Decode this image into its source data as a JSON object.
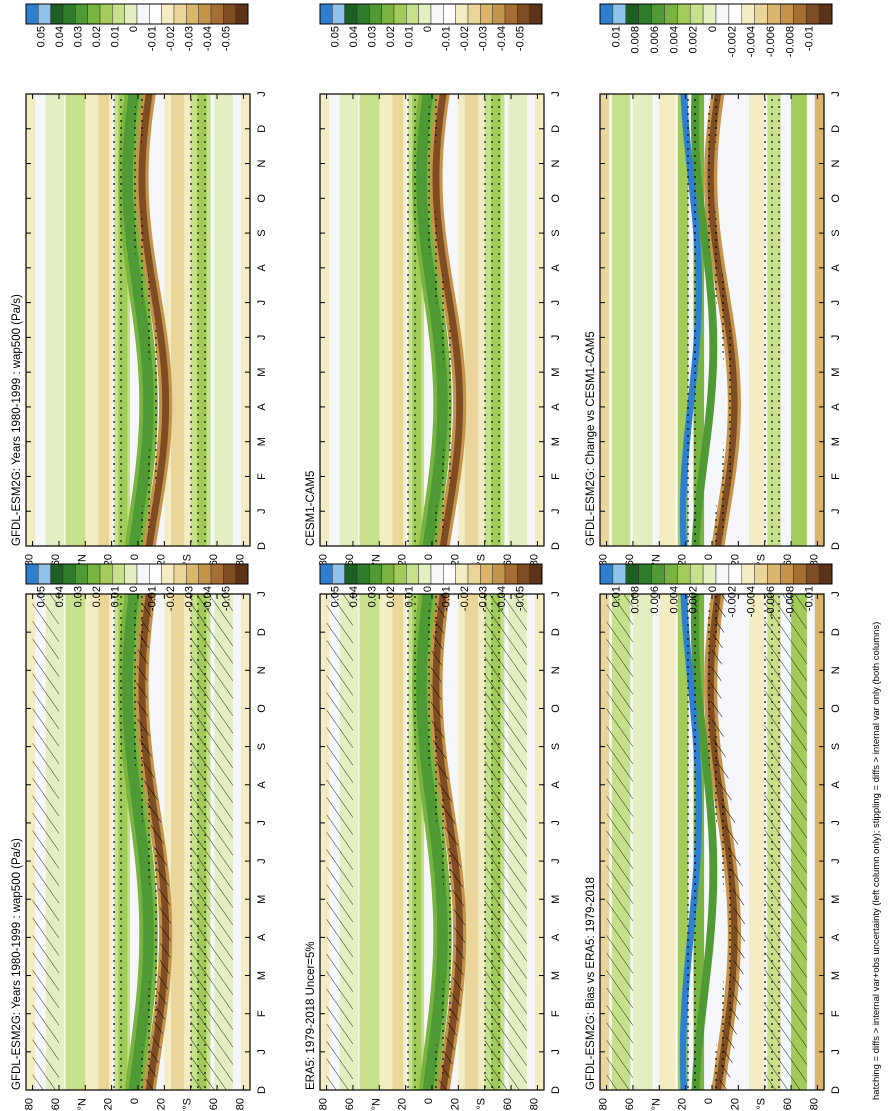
{
  "footnote": "hatching = diffs > internal var+obs uncertainty (left column only); stippling = diffs > internal var only (both columns)",
  "lat_ticks": [
    "80",
    "60",
    "°N",
    "20",
    "0",
    "20",
    "°S",
    "60",
    "80"
  ],
  "month_ticks": [
    "D",
    "J",
    "F",
    "M",
    "A",
    "M",
    "J",
    "J",
    "A",
    "S",
    "O",
    "N",
    "D",
    "J"
  ],
  "palette": {
    "blue": [
      "#2f7fd0",
      "#8fc3ec"
    ],
    "green": [
      "#1e5f22",
      "#2f7d2c",
      "#4f9a34",
      "#78b43f",
      "#a2cb5a",
      "#c7e08b",
      "#e3efc0"
    ],
    "white": [
      "#f6f7fb",
      "#ffffff"
    ],
    "tan": [
      "#f4ecc2",
      "#ead59a",
      "#d9b66a",
      "#c4944a",
      "#a66e34",
      "#7f4d23",
      "#5a3318"
    ]
  },
  "legends": {
    "row1_left": [
      "0.05",
      "0.04",
      "0.03",
      "0.02",
      "0.01",
      "0",
      "-0.01",
      "-0.02",
      "-0.03",
      "-0.04",
      "-0.05"
    ],
    "row1_right": [
      "0.05",
      "0.04",
      "0.03",
      "0.02",
      "0.01",
      "0",
      "-0.01",
      "-0.02",
      "-0.03",
      "-0.04",
      "-0.05"
    ],
    "row2_left": [
      "0.05",
      "0.04",
      "0.03",
      "0.02",
      "0.01",
      "0",
      "-0.01",
      "-0.02",
      "-0.03",
      "-0.04",
      "-0.05"
    ],
    "row2_right": [
      "0.05",
      "0.04",
      "0.03",
      "0.02",
      "0.01",
      "0",
      "-0.01",
      "-0.02",
      "-0.03",
      "-0.04",
      "-0.05"
    ],
    "row3_left": [
      "0.01",
      "0.008",
      "0.006",
      "0.004",
      "0.002",
      "0",
      "-0.002",
      "-0.004",
      "-0.006",
      "-0.008",
      "-0.01"
    ],
    "row3_right": [
      "0.01",
      "0.008",
      "0.006",
      "0.004",
      "0.002",
      "0",
      "-0.002",
      "-0.004",
      "-0.006",
      "-0.008",
      "-0.01"
    ]
  },
  "chart_data": [
    {
      "type": "heatmap",
      "panel": "row1_left",
      "title": "GFDL-ESM2G: Years 1980-1999 : wap500 (Pa/s)",
      "x": "month",
      "y": "latitude",
      "hatching": true,
      "stippling": true,
      "colorbar": "row1_left"
    },
    {
      "type": "heatmap",
      "panel": "row1_right",
      "title": "GFDL-ESM2G: Years 1980-1999 : wap500 (Pa/s)",
      "x": "month",
      "y": "latitude",
      "hatching": false,
      "stippling": true,
      "colorbar": "row1_right"
    },
    {
      "type": "heatmap",
      "panel": "row2_left",
      "title": "ERA5: 1979-2018 Uncer=5%",
      "x": "month",
      "y": "latitude",
      "hatching": true,
      "stippling": true,
      "colorbar": "row2_left"
    },
    {
      "type": "heatmap",
      "panel": "row2_right",
      "title": "CESM1-CAM5",
      "x": "month",
      "y": "latitude",
      "hatching": false,
      "stippling": true,
      "colorbar": "row2_right"
    },
    {
      "type": "heatmap",
      "panel": "row3_left",
      "title": "GFDL-ESM2G: Bias vs ERA5: 1979-2018",
      "x": "month",
      "y": "latitude",
      "hatching": true,
      "stippling": true,
      "colorbar": "row3_left"
    },
    {
      "type": "heatmap",
      "panel": "row3_right",
      "title": "GFDL-ESM2G: Change vs CESM1-CAM5",
      "x": "month",
      "y": "latitude",
      "hatching": false,
      "stippling": true,
      "colorbar": "row3_right"
    }
  ]
}
